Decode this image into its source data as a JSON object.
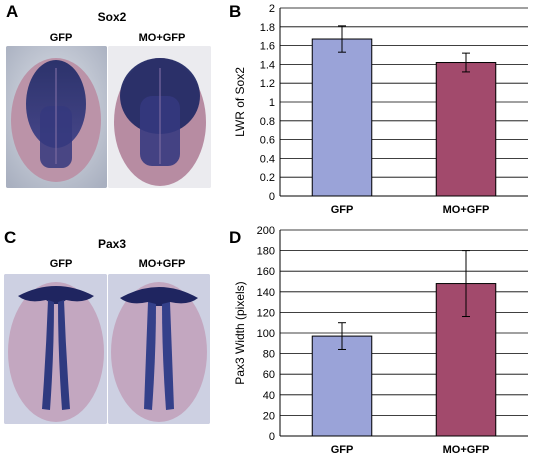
{
  "panels": {
    "A": {
      "letter": "A",
      "title": "Sox2",
      "labels": [
        "GFP",
        "MO+GFP"
      ]
    },
    "B": {
      "letter": "B"
    },
    "C": {
      "letter": "C",
      "title": "Pax3",
      "labels": [
        "GFP",
        "MO+GFP"
      ]
    },
    "D": {
      "letter": "D"
    }
  },
  "colors": {
    "gfp_bar": "#9aa3d8",
    "mo_bar": "#a24a6c",
    "stain": "#2e3a7a",
    "embryo": "#b58aa0"
  },
  "chart_data": [
    {
      "type": "bar",
      "panel": "B",
      "categories": [
        "GFP",
        "MO+GFP"
      ],
      "values": [
        1.67,
        1.42
      ],
      "errors": [
        0.14,
        0.1
      ],
      "ylabel": "LWR of Sox2",
      "xlabel": "",
      "ylim": [
        0,
        2
      ],
      "yticks": [
        0,
        0.2,
        0.4,
        0.6,
        0.8,
        1,
        1.2,
        1.4,
        1.6,
        1.8,
        2
      ],
      "ytick_labels": [
        "0",
        "0.2",
        "0.4",
        "0.6",
        "0.8",
        "1",
        "1.2",
        "1.4",
        "1.6",
        "1.8",
        "2"
      ],
      "grid": true,
      "legend": "none"
    },
    {
      "type": "bar",
      "panel": "D",
      "categories": [
        "GFP",
        "MO+GFP"
      ],
      "values": [
        97,
        148
      ],
      "errors": [
        13,
        32
      ],
      "ylabel": "Pax3 Width (pixels)",
      "xlabel": "",
      "ylim": [
        0,
        200
      ],
      "yticks": [
        0,
        20,
        40,
        60,
        80,
        100,
        120,
        140,
        160,
        180,
        200
      ],
      "ytick_labels": [
        "0",
        "20",
        "40",
        "60",
        "80",
        "100",
        "120",
        "140",
        "160",
        "180",
        "200"
      ],
      "grid": true,
      "legend": "none"
    }
  ]
}
